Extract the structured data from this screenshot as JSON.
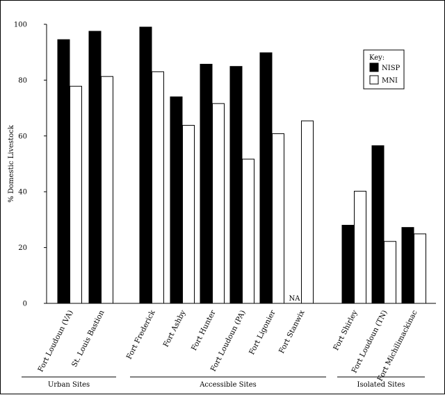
{
  "chart_data": {
    "type": "bar",
    "ylabel": "% Domestic Livestock",
    "ylim": [
      0,
      100
    ],
    "yticks": [
      0,
      20,
      40,
      60,
      80,
      100
    ],
    "categories": [
      "Fort Loudoun (VA)",
      "St. Louis Bastion",
      "Fort Frederick",
      "Fort Ashby",
      "Fort Hunter",
      "Fort Loudoun (PA)",
      "Fort Ligonier",
      "Fort Stanwix",
      "Fort Shirley",
      "Fort Loudoun (TN)",
      "Fort Michilimackinac"
    ],
    "series": [
      {
        "name": "NISP",
        "color": "#000000",
        "values": [
          94.5,
          97.5,
          99,
          74,
          85.7,
          84.9,
          89.8,
          null,
          28,
          56.5,
          27.2
        ]
      },
      {
        "name": "MNI",
        "color": "#ffffff",
        "values": [
          77.8,
          81.3,
          83,
          63.8,
          71.6,
          51.7,
          60.8,
          65.4,
          40.2,
          22.2,
          24.9
        ]
      }
    ],
    "missing_label": "NA",
    "groups": [
      {
        "label": "Urban Sites",
        "from": 0,
        "to": 1
      },
      {
        "label": "Accessible Sites",
        "from": 2,
        "to": 7
      },
      {
        "label": "Isolated Sites",
        "from": 8,
        "to": 10
      }
    ],
    "legend": {
      "title": "Key:",
      "position": "top-right"
    }
  }
}
